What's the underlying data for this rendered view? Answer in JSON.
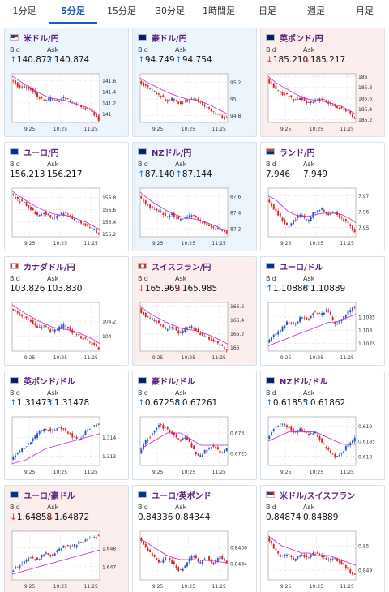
{
  "tabs": [
    "1分足",
    "5分足",
    "15分足",
    "30分足",
    "1時間足",
    "日足",
    "週足",
    "月足"
  ],
  "active_tab": 1,
  "labels": {
    "bid": "Bid",
    "ask": "Ask"
  },
  "colors": {
    "up": "#1a7ab8",
    "down": "#d0342c",
    "ma": "#cc22cc",
    "candle_up": "#2255cc",
    "candle_down": "#dd2222",
    "title": "#5a1f7a"
  },
  "x_ticks": [
    "9:25",
    "10:25",
    "11:25"
  ],
  "cards": [
    {
      "name": "米ドル/円",
      "flag": "us-jp-flag",
      "tone": "up",
      "bid": "140.872",
      "ask": "140.874",
      "dir": "up",
      "ticks": [
        "141.6",
        "141.4",
        "141.2",
        "141"
      ],
      "ymin": 140.85,
      "ymax": 141.72,
      "chart_data": {
        "type": "candlestick",
        "trend": [
          141.62,
          141.5,
          141.48,
          141.45,
          141.3,
          141.25,
          141.28,
          141.22,
          141.3,
          141.2,
          141.15,
          141.1,
          141.05,
          140.9
        ],
        "ma": [
          141.68,
          141.6,
          141.52,
          141.45,
          141.38,
          141.32,
          141.28,
          141.26,
          141.24,
          141.2,
          141.16,
          141.12,
          141.05,
          140.98
        ]
      }
    },
    {
      "name": "豪ドル/円",
      "flag": "au-jp-flag",
      "tone": "up",
      "bid": "94.749",
      "ask": "94.754",
      "dir": "up",
      "ticks": [
        "95.2",
        "95",
        "94.8"
      ],
      "ymin": 94.72,
      "ymax": 95.3,
      "chart_data": {
        "type": "candlestick",
        "trend": [
          95.2,
          95.15,
          95.1,
          95.05,
          94.98,
          95.0,
          94.95,
          94.98,
          95.0,
          94.96,
          94.9,
          94.85,
          94.8,
          94.76
        ],
        "ma": [
          95.25,
          95.2,
          95.16,
          95.12,
          95.08,
          95.05,
          95.02,
          95.0,
          94.99,
          94.97,
          94.94,
          94.9,
          94.86,
          94.82
        ]
      }
    },
    {
      "name": "英ポンド/円",
      "flag": "gb-jp-flag",
      "tone": "down",
      "bid": "185.210",
      "ask": "185.217",
      "dir": "down",
      "ticks": [
        "186",
        "185.8",
        "185.6",
        "185.4",
        "185.2"
      ],
      "ymin": 185.15,
      "ymax": 186.05,
      "chart_data": {
        "type": "candlestick",
        "trend": [
          185.95,
          185.8,
          185.7,
          185.65,
          185.55,
          185.6,
          185.5,
          185.55,
          185.6,
          185.5,
          185.45,
          185.4,
          185.35,
          185.2
        ],
        "ma": [
          186.0,
          185.9,
          185.82,
          185.75,
          185.68,
          185.62,
          185.58,
          185.56,
          185.55,
          185.52,
          185.48,
          185.44,
          185.38,
          185.3
        ]
      }
    },
    {
      "name": "ユーロ/円",
      "flag": "eu-jp-flag",
      "tone": "neutral",
      "bid": "156.213",
      "ask": "156.217",
      "dir": "none",
      "ticks": [
        "156.8",
        "156.6",
        "156.4",
        "156.2"
      ],
      "ymin": 156.15,
      "ymax": 156.95,
      "chart_data": {
        "type": "candlestick",
        "trend": [
          156.85,
          156.75,
          156.7,
          156.6,
          156.5,
          156.55,
          156.45,
          156.5,
          156.55,
          156.45,
          156.4,
          156.35,
          156.3,
          156.2
        ],
        "ma": [
          156.9,
          156.82,
          156.75,
          156.68,
          156.62,
          156.57,
          156.53,
          156.51,
          156.5,
          156.47,
          156.43,
          156.39,
          156.33,
          156.27
        ]
      }
    },
    {
      "name": "NZドル/円",
      "flag": "nz-jp-flag",
      "tone": "up",
      "bid": "87.140",
      "ask": "87.144",
      "dir": "up",
      "ticks": [
        "87.6",
        "87.4",
        "87.2"
      ],
      "ymin": 87.1,
      "ymax": 87.7,
      "chart_data": {
        "type": "candlestick",
        "trend": [
          87.6,
          87.5,
          87.45,
          87.42,
          87.35,
          87.38,
          87.3,
          87.35,
          87.38,
          87.3,
          87.25,
          87.22,
          87.18,
          87.14
        ],
        "ma": [
          87.65,
          87.58,
          87.52,
          87.47,
          87.42,
          87.38,
          87.35,
          87.33,
          87.32,
          87.3,
          87.27,
          87.24,
          87.2,
          87.17
        ]
      }
    },
    {
      "name": "ランド/円",
      "flag": "za-jp-flag",
      "tone": "neutral",
      "bid": "7.946",
      "ask": "7.949",
      "dir": "none",
      "ticks": [
        "7.97",
        "7.96",
        "7.95"
      ],
      "ymin": 7.944,
      "ymax": 7.975,
      "chart_data": {
        "type": "candlestick",
        "trend": [
          7.968,
          7.962,
          7.956,
          7.95,
          7.955,
          7.958,
          7.954,
          7.96,
          7.962,
          7.958,
          7.96,
          7.956,
          7.952,
          7.947
        ],
        "ma": [
          7.97,
          7.968,
          7.964,
          7.96,
          7.958,
          7.957,
          7.957,
          7.958,
          7.959,
          7.959,
          7.959,
          7.958,
          7.956,
          7.953
        ]
      }
    },
    {
      "name": "カナダドル/円",
      "flag": "ca-jp-flag",
      "tone": "neutral",
      "bid": "103.826",
      "ask": "103.830",
      "dir": "none",
      "ticks": [
        "104.2",
        "104"
      ],
      "ymin": 103.8,
      "ymax": 104.45,
      "chart_data": {
        "type": "candlestick",
        "trend": [
          104.38,
          104.3,
          104.25,
          104.2,
          104.1,
          104.15,
          104.05,
          104.1,
          104.15,
          104.05,
          104.0,
          103.95,
          103.9,
          103.83
        ],
        "ma": [
          104.42,
          104.36,
          104.3,
          104.25,
          104.2,
          104.16,
          104.12,
          104.1,
          104.09,
          104.07,
          104.04,
          104.0,
          103.96,
          103.9
        ]
      }
    },
    {
      "name": "スイスフラン/円",
      "flag": "ch-jp-flag",
      "tone": "down",
      "bid": "165.969",
      "ask": "165.985",
      "dir": "down",
      "ticks": [
        "166.6",
        "166.4",
        "166.2",
        "166"
      ],
      "ymin": 165.95,
      "ymax": 166.65,
      "chart_data": {
        "type": "candlestick",
        "trend": [
          166.55,
          166.45,
          166.4,
          166.35,
          166.25,
          166.3,
          166.2,
          166.28,
          166.3,
          166.2,
          166.15,
          166.1,
          166.05,
          165.97
        ],
        "ma": [
          166.6,
          166.52,
          166.46,
          166.41,
          166.36,
          166.32,
          166.28,
          166.26,
          166.25,
          166.22,
          166.19,
          166.15,
          166.1,
          166.05
        ]
      }
    },
    {
      "name": "ユーロ/ドル",
      "flag": "eu-us-flag",
      "tone": "neutral",
      "bid": "1.10886",
      "ask": "1.10889",
      "dir": "up",
      "ticks": [
        "1.1085",
        "1.108",
        "1.1075"
      ],
      "ymin": 1.1072,
      "ymax": 1.10905,
      "chart_data": {
        "type": "candlestick",
        "trend": [
          1.1075,
          1.1078,
          1.108,
          1.1083,
          1.1082,
          1.1085,
          1.1084,
          1.1087,
          1.1086,
          1.1088,
          1.1082,
          1.1084,
          1.1087,
          1.10888
        ],
        "ma": [
          1.1074,
          1.1075,
          1.1076,
          1.1077,
          1.1078,
          1.1079,
          1.108,
          1.1081,
          1.1082,
          1.1083,
          1.1083,
          1.1084,
          1.1085,
          1.1086
        ]
      }
    },
    {
      "name": "英ポンド/ドル",
      "flag": "gb-us-flag",
      "tone": "neutral",
      "bid": "1.31473",
      "ask": "1.31478",
      "dir": "up",
      "ticks": [
        "1.314",
        "1.313"
      ],
      "ymin": 1.3125,
      "ymax": 1.3151,
      "chart_data": {
        "type": "candlestick",
        "trend": [
          1.3128,
          1.3132,
          1.3135,
          1.3138,
          1.3142,
          1.3145,
          1.3143,
          1.3146,
          1.3144,
          1.3141,
          1.3138,
          1.3143,
          1.3146,
          1.31475
        ],
        "ma": [
          1.3126,
          1.3127,
          1.3128,
          1.313,
          1.3132,
          1.3134,
          1.3135,
          1.3136,
          1.3137,
          1.3138,
          1.3139,
          1.314,
          1.3141,
          1.3142
        ]
      }
    },
    {
      "name": "豪ドル/ドル",
      "flag": "au-us-flag",
      "tone": "neutral",
      "bid": "0.67258",
      "ask": "0.67261",
      "dir": "up",
      "ticks": [
        "0.673",
        "0.6725"
      ],
      "ymin": 0.6722,
      "ymax": 0.6734,
      "chart_data": {
        "type": "candlestick",
        "trend": [
          0.6725,
          0.6728,
          0.673,
          0.6732,
          0.6731,
          0.673,
          0.6728,
          0.6729,
          0.6726,
          0.6724,
          0.6726,
          0.6727,
          0.6725,
          0.67259
        ],
        "ma": [
          0.6726,
          0.6727,
          0.6728,
          0.6729,
          0.673,
          0.673,
          0.673,
          0.6729,
          0.6728,
          0.6727,
          0.6727,
          0.6727,
          0.6727,
          0.6727
        ]
      }
    },
    {
      "name": "NZドル/ドル",
      "flag": "nz-us-flag",
      "tone": "neutral",
      "bid": "0.61855",
      "ask": "0.61862",
      "dir": "up",
      "ticks": [
        "0.619",
        "0.6185",
        "0.618"
      ],
      "ymin": 0.6177,
      "ymax": 0.6193,
      "chart_data": {
        "type": "candlestick",
        "trend": [
          0.6186,
          0.6189,
          0.6191,
          0.619,
          0.6188,
          0.6189,
          0.6187,
          0.6188,
          0.6185,
          0.6182,
          0.618,
          0.6181,
          0.6184,
          0.61858
        ],
        "ma": [
          0.6185,
          0.6186,
          0.6187,
          0.6188,
          0.6188,
          0.6188,
          0.6188,
          0.6188,
          0.6187,
          0.6186,
          0.6185,
          0.6184,
          0.6184,
          0.6184
        ]
      }
    },
    {
      "name": "ユーロ/豪ドル",
      "flag": "eu-au-flag",
      "tone": "down",
      "bid": "1.64858",
      "ask": "1.64872",
      "dir": "down",
      "ticks": [
        "1.648",
        "1.647"
      ],
      "ymin": 1.6463,
      "ymax": 1.6489,
      "chart_data": {
        "type": "candlestick",
        "trend": [
          1.6468,
          1.647,
          1.6473,
          1.6475,
          1.6474,
          1.6477,
          1.6476,
          1.6479,
          1.6481,
          1.648,
          1.6483,
          1.6484,
          1.6486,
          1.64865
        ],
        "ma": [
          1.6466,
          1.6467,
          1.6468,
          1.6469,
          1.647,
          1.6471,
          1.6472,
          1.6473,
          1.6474,
          1.6475,
          1.6476,
          1.6477,
          1.6478,
          1.6479
        ]
      }
    },
    {
      "name": "ユーロ/英ポンド",
      "flag": "eu-gb-flag",
      "tone": "neutral",
      "bid": "0.84336",
      "ask": "0.84344",
      "dir": "none",
      "ticks": [
        "0.8436",
        "0.8434"
      ],
      "ymin": 0.8432,
      "ymax": 0.8438,
      "chart_data": {
        "type": "candlestick",
        "trend": [
          0.8437,
          0.8436,
          0.8435,
          0.8434,
          0.8435,
          0.8434,
          0.8433,
          0.8434,
          0.8435,
          0.8434,
          0.8435,
          0.8434,
          0.8435,
          0.8434
        ],
        "ma": [
          0.8437,
          0.84366,
          0.8436,
          0.84355,
          0.8435,
          0.84347,
          0.84345,
          0.84345,
          0.84345,
          0.84344,
          0.84344,
          0.84343,
          0.84342,
          0.84341
        ]
      }
    },
    {
      "name": "米ドル/スイスフラン",
      "flag": "us-ch-flag",
      "tone": "neutral",
      "bid": "0.84874",
      "ask": "0.84889",
      "dir": "none",
      "ticks": [
        "0.85",
        "0.849"
      ],
      "ymin": 0.8486,
      "ymax": 0.8506,
      "chart_data": {
        "type": "candlestick",
        "trend": [
          0.8503,
          0.8499,
          0.8495,
          0.8497,
          0.8494,
          0.8496,
          0.8495,
          0.8497,
          0.8496,
          0.8494,
          0.8495,
          0.8493,
          0.849,
          0.84881
        ],
        "ma": [
          0.8504,
          0.8502,
          0.85,
          0.8499,
          0.8498,
          0.8497,
          0.8497,
          0.8496,
          0.8496,
          0.8496,
          0.8495,
          0.8494,
          0.8493,
          0.8492
        ]
      }
    }
  ]
}
